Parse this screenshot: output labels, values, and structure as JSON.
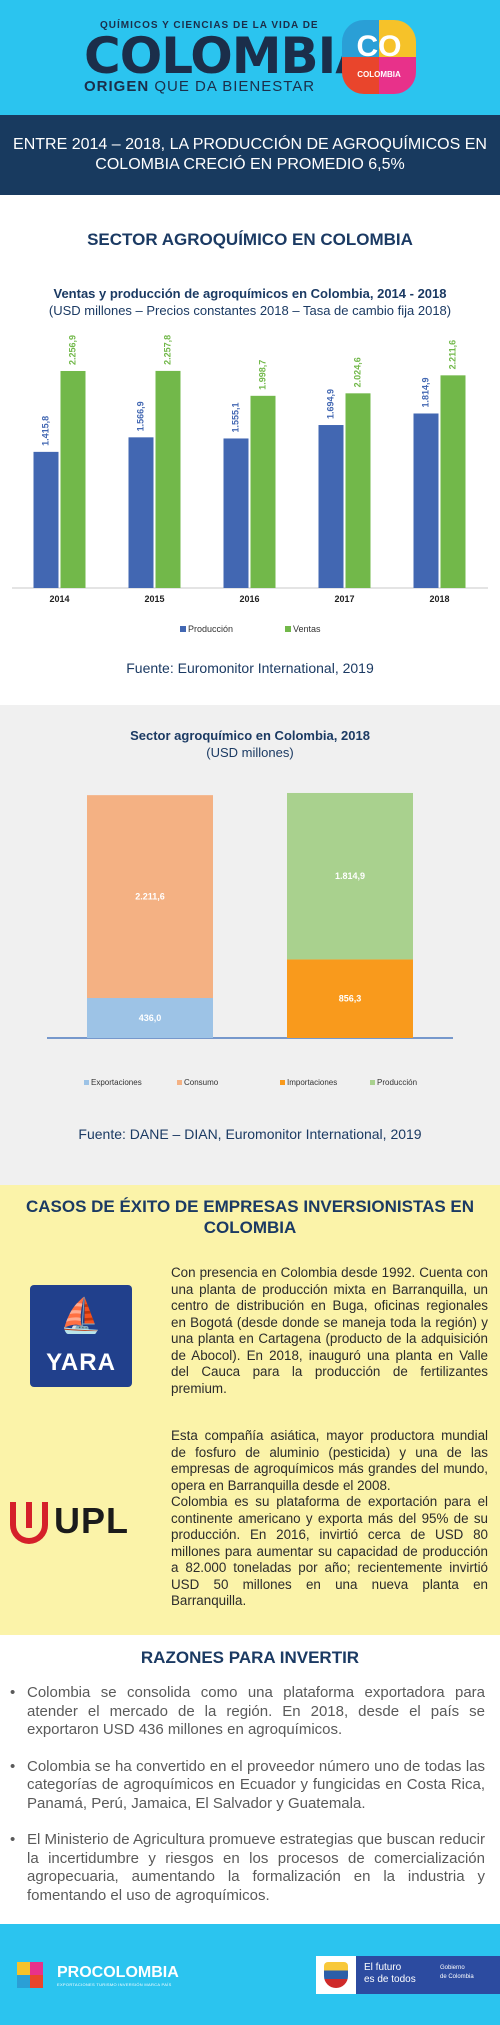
{
  "header": {
    "top_line": "QUÍMICOS Y CIENCIAS DE LA VIDA DE",
    "logo_text": "COLOMBIA",
    "subline_bold": "ORIGEN",
    "subline_rest": "QUE DA BIENESTAR",
    "badge_co": "CO",
    "badge_label": "COLOMBIA"
  },
  "banner": "ENTRE 2014 – 2018, LA PRODUCCIÓN DE AGROQUÍMICOS EN COLOMBIA CRECIÓ EN PROMEDIO 6,5%",
  "section_title": "SECTOR AGROQUÍMICO EN COLOMBIA",
  "chart1": {
    "title": "Ventas y producción de agroquímicos en Colombia, 2014 - 2018",
    "subtitle": "(USD millones – Precios constantes 2018 – Tasa de cambio fija 2018)",
    "source": "Fuente: Euromonitor International, 2019"
  },
  "chart2": {
    "title": "Sector agroquímico en Colombia, 2018",
    "subtitle": "(USD millones)",
    "source": "Fuente: DANE – DIAN, Euromonitor International, 2019"
  },
  "chart_data": [
    {
      "type": "bar",
      "title": "Ventas y producción de agroquímicos en Colombia, 2014 - 2018",
      "subtitle": "(USD millones – Precios constantes 2018 – Tasa de cambio fija 2018)",
      "categories": [
        "2014",
        "2015",
        "2016",
        "2017",
        "2018"
      ],
      "series": [
        {
          "name": "Producción",
          "color": "#4267b2",
          "values": [
            1415.8,
            1566.9,
            1555.1,
            1694.9,
            1814.9
          ],
          "labels": [
            "1.415,8",
            "1.566,9",
            "1.555,1",
            "1.694,9",
            "1.814,9"
          ]
        },
        {
          "name": "Ventas",
          "color": "#72b84a",
          "values": [
            2256.9,
            2257.8,
            1998.7,
            2024.6,
            2211.6
          ],
          "labels": [
            "2.256,9",
            "2.257,8",
            "1.998,7",
            "2.024,6",
            "2.211,6"
          ]
        }
      ],
      "ylim": [
        0,
        2600
      ],
      "grid": false,
      "legend": "bottom"
    },
    {
      "type": "bar",
      "stacked": true,
      "title": "Sector agroquímico en Colombia, 2018",
      "subtitle": "(USD millones)",
      "stacks": [
        {
          "segments": [
            {
              "name": "Exportaciones",
              "value": 436.0,
              "label": "436,0",
              "color": "#9dc3e6"
            },
            {
              "name": "Consumo",
              "value": 2211.6,
              "label": "2.211,6",
              "color": "#f4b183"
            }
          ]
        },
        {
          "segments": [
            {
              "name": "Importaciones",
              "value": 856.3,
              "label": "856,3",
              "color": "#f99a1c"
            },
            {
              "name": "Producción",
              "value": 1814.9,
              "label": "1.814,9",
              "color": "#a9d18e"
            }
          ]
        }
      ],
      "legend": "bottom"
    }
  ],
  "cases": {
    "title": "CASOS DE ÉXITO DE EMPRESAS INVERSIONISTAS EN COLOMBIA",
    "yara_logo": "YARA",
    "upl_logo": "UPL",
    "yara_text": "Con presencia en Colombia desde 1992. Cuenta con una planta de producción mixta en Barranquilla, un centro de distribución en Buga, oficinas regionales en Bogotá (desde donde se maneja toda la región) y una planta en Cartagena (producto de la adquisición de Abocol). En 2018, inauguró una planta en Valle del Cauca para la producción de fertilizantes premium.",
    "upl_text_1": "Esta compañía asiática, mayor productora mundial de fosfuro de aluminio (pesticida) y una de las empresas de agroquímicos más grandes del mundo, opera en Barranquilla desde el 2008.",
    "upl_text_2": "Colombia es su plataforma de exportación para el continente americano y exporta más del 95% de su producción. En 2016, invirtió cerca de USD 80 millones para aumentar su capacidad de producción a 82.000 toneladas por año; recientemente invirtió USD 50 millones en una nueva planta en Barranquilla."
  },
  "reasons": {
    "title": "RAZONES PARA INVERTIR",
    "items": [
      "Colombia se consolida como una plataforma exportadora para atender el mercado de la región. En 2018, desde el país se exportaron USD 436 millones en agroquímicos.",
      "Colombia se ha convertido en el proveedor número uno de todas las categorías de agroquímicos en Ecuador y fungicidas en Costa Rica, Panamá, Perú, Jamaica, El Salvador y Guatemala.",
      "El Ministerio de Agricultura promueve estrategias que buscan reducir la incertidumbre y riesgos en los procesos de comercialización agropecuaria, aumentando la formalización en la industria y fomentando el uso de agroquímicos."
    ]
  },
  "footer": {
    "procolombia": "PROCOLOMBIA",
    "procolombia_tag": "EXPORTACIONES TURISMO INVERSIÓN MARCA PAÍS",
    "gov_line1": "El futuro",
    "gov_line2": "es de todos",
    "gov_right1": "Gobierno",
    "gov_right2": "de Colombia"
  }
}
